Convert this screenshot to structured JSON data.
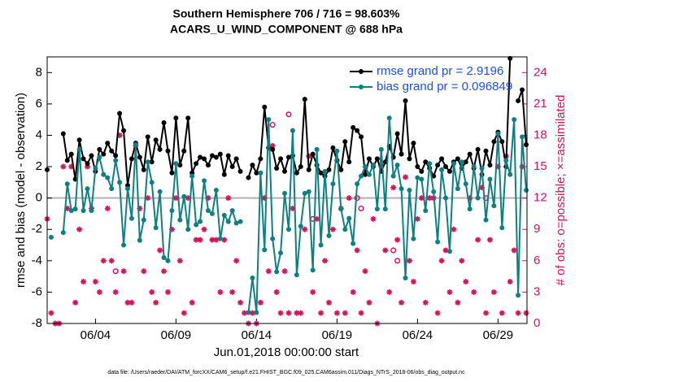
{
  "chart_data": {
    "type": "line",
    "title": "Southern Hemisphere 706 / 716 = 98.603%",
    "subtitle": "ACARS_U_WIND_COMPONENT @ 688 hPa",
    "xlabel": "Jun.01,2018 00:00:00 start",
    "ylabel": "rmse and bias (model - observation)",
    "y2label": "# of obs: o=possible; ×=assimilated",
    "footnote": "data file: /Users/raeder/DAI/ATM_forcXX/CAM6_setup/f.e21.FHIST_BGC.f09_025.CAM6assim.011/Diags_NTrS_2018-06/obs_diag_output.nc",
    "xlim": [
      0,
      29.8
    ],
    "xticks": [
      {
        "value": 3,
        "label": "06/04"
      },
      {
        "value": 8,
        "label": "06/09"
      },
      {
        "value": 13,
        "label": "06/14"
      },
      {
        "value": 18,
        "label": "06/19"
      },
      {
        "value": 23,
        "label": "06/24"
      },
      {
        "value": 28,
        "label": "06/29"
      }
    ],
    "ylim": [
      -8,
      9
    ],
    "yticks": [
      -8,
      -6,
      -4,
      -2,
      0,
      2,
      4,
      6,
      8
    ],
    "y2lim": [
      0,
      25.5
    ],
    "y2ticks": [
      0,
      3,
      6,
      9,
      12,
      15,
      18,
      21,
      24
    ],
    "legend": "upper right",
    "x": [
      0,
      0.25,
      0.5,
      0.75,
      1,
      1.25,
      1.5,
      1.75,
      2,
      2.25,
      2.5,
      2.75,
      3,
      3.25,
      3.5,
      3.75,
      4,
      4.25,
      4.5,
      4.75,
      5,
      5.25,
      5.5,
      5.75,
      6,
      6.25,
      6.5,
      6.75,
      7,
      7.25,
      7.5,
      7.75,
      8,
      8.25,
      8.5,
      8.75,
      9,
      9.25,
      9.5,
      9.75,
      10,
      10.25,
      10.5,
      10.75,
      11,
      11.25,
      11.5,
      11.75,
      12,
      12.25,
      12.5,
      12.75,
      13,
      13.25,
      13.5,
      13.75,
      14,
      14.25,
      14.5,
      14.75,
      15,
      15.25,
      15.5,
      15.75,
      16,
      16.25,
      16.5,
      16.75,
      17,
      17.25,
      17.5,
      17.75,
      18,
      18.25,
      18.5,
      18.75,
      19,
      19.25,
      19.5,
      19.75,
      20,
      20.25,
      20.5,
      20.75,
      21,
      21.25,
      21.5,
      21.75,
      22,
      22.25,
      22.5,
      22.75,
      23,
      23.25,
      23.5,
      23.75,
      24,
      24.25,
      24.5,
      24.75,
      25,
      25.25,
      25.5,
      25.75,
      26,
      26.25,
      26.5,
      26.75,
      27,
      27.25,
      27.5,
      27.75,
      28,
      28.25,
      28.5,
      28.75,
      29,
      29.25,
      29.5,
      29.75
    ],
    "series": [
      {
        "name": "rmse grand pr = 2.9196",
        "color": "#000000",
        "values": [
          1.8,
          null,
          null,
          null,
          4.1,
          2.4,
          2.8,
          1.2,
          3.7,
          2.5,
          2.2,
          2.7,
          1.7,
          3.1,
          2.8,
          3.5,
          3.0,
          2.7,
          5.4,
          4.3,
          0.8,
          2.5,
          3.5,
          2.6,
          1.8,
          3.9,
          2.3,
          3.7,
          3.1,
          4.8,
          3.0,
          1.6,
          5.1,
          2.1,
          3.0,
          5.1,
          1.6,
          2.2,
          2.6,
          2.5,
          2.1,
          2.7,
          2.6,
          2.8,
          1.5,
          2.7,
          2.0,
          2.5,
          1.7,
          null,
          1.3,
          2.1,
          1.6,
          2.5,
          5.8,
          3.2,
          3.1,
          1.9,
          2.5,
          1.7,
          2.6,
          2.7,
          1.6,
          2.0,
          6.3,
          1.8,
          2.8,
          2.1,
          1.6,
          1.4,
          1.8,
          3.2,
          2.4,
          1.8,
          3.6,
          2.3,
          4.5,
          4.3,
          3.9,
          1.5,
          2.5,
          2.0,
          2.5,
          1.7,
          2.3,
          3.3,
          2.6,
          4.1,
          2.8,
          6.2,
          2.5,
          3.5,
          2.0,
          1.7,
          2.3,
          1.9,
          1.4,
          2.1,
          2.5,
          2.0,
          1.7,
          2.3,
          2.5,
          1.9,
          2.3,
          2.8,
          1.9,
          3.1,
          1.5,
          3.0,
          2.1,
          3.6,
          4.2,
          3.6,
          2.0,
          8.9,
          null,
          6.2,
          6.9,
          3.4
        ]
      },
      {
        "name": "bias grand pr = 0.096849",
        "color": "#0e8080",
        "values": [
          null,
          -2.5,
          null,
          null,
          -2.2,
          0.9,
          -0.8,
          -0.7,
          3.1,
          -0.8,
          0.6,
          -0.8,
          1.9,
          2.6,
          1.5,
          1.3,
          0.6,
          2.4,
          1.0,
          -3.0,
          0.6,
          -1.3,
          3.4,
          -2.7,
          -1.4,
          2.3,
          1.0,
          -1.9,
          0.4,
          -3.8,
          -4.0,
          -0.8,
          2.2,
          -1.4,
          0.1,
          -2.0,
          1.4,
          -1.7,
          -1.5,
          1.1,
          -0.8,
          -1.0,
          0.5,
          -2.6,
          -1.1,
          -1.5,
          -0.8,
          -1.6,
          -1.5,
          null,
          -7.3,
          -5.1,
          -7.3,
          1.6,
          -3.3,
          5.0,
          -2.6,
          -4.7,
          -3.5,
          0.3,
          -2.0,
          4.3,
          -4.9,
          -1.8,
          0.3,
          0.4,
          -4.6,
          3.1,
          -3.0,
          1.7,
          -2.4,
          0.9,
          3.0,
          -0.7,
          -2.0,
          -1.3,
          -2.9,
          0.9,
          1.4,
          2.0,
          1.5,
          2.1,
          -0.7,
          3.1,
          -0.7,
          5.1,
          1.4,
          2.1,
          0.6,
          -5.1,
          0.5,
          -2.6,
          1.3,
          1.2,
          -0.8,
          2.2,
          0.4,
          -2.8,
          1.8,
          0.0,
          -3.4,
          2.2,
          0.6,
          2.3,
          0.9,
          -0.7,
          2.0,
          0.0,
          1.9,
          -1.4,
          1.2,
          -0.5,
          4.1,
          -1.9,
          2.4,
          1.5,
          5.0,
          -6.2,
          3.9,
          0.5
        ]
      },
      {
        "name": "assimilated",
        "color": "#d6135a",
        "axis": "y2",
        "marker": "asterisk",
        "values": [
          10,
          1,
          0,
          0,
          15,
          11,
          15,
          2,
          9,
          4,
          15,
          11,
          4,
          3,
          6,
          11,
          6,
          3,
          18,
          5,
          2,
          2,
          17,
          11,
          5,
          12,
          3,
          2,
          7,
          5,
          3,
          9,
          12,
          6,
          1,
          12,
          2,
          8,
          8,
          9,
          12,
          8,
          8,
          3,
          8,
          12,
          3,
          6,
          2,
          1,
          0,
          1,
          0,
          2,
          12,
          5,
          17,
          3,
          1,
          5,
          1,
          11,
          1,
          1,
          9,
          16,
          3,
          10,
          1,
          6,
          2,
          9,
          1,
          11,
          1,
          12,
          3,
          7,
          1,
          5,
          2,
          10,
          0,
          15,
          7,
          3,
          13,
          8,
          2,
          14,
          6,
          4,
          10,
          12,
          2,
          12,
          12,
          1,
          6,
          7,
          3,
          9,
          2,
          6,
          4,
          12,
          3,
          8,
          13,
          1,
          8,
          3,
          15,
          1,
          16,
          4,
          7,
          1,
          15,
          1
        ]
      },
      {
        "name": "possible",
        "color": "#d6135a",
        "axis": "y2",
        "marker": "circle",
        "values": [
          null,
          null,
          null,
          null,
          null,
          null,
          null,
          null,
          null,
          null,
          null,
          null,
          null,
          null,
          null,
          null,
          null,
          5,
          null,
          null,
          null,
          null,
          null,
          null,
          null,
          null,
          null,
          null,
          null,
          null,
          null,
          null,
          null,
          null,
          null,
          null,
          null,
          null,
          null,
          null,
          null,
          null,
          null,
          null,
          null,
          null,
          null,
          null,
          null,
          null,
          null,
          null,
          null,
          null,
          null,
          null,
          19,
          null,
          null,
          null,
          20,
          null,
          null,
          null,
          null,
          null,
          10,
          null,
          null,
          null,
          null,
          null,
          null,
          null,
          null,
          null,
          null,
          12,
          11,
          null,
          null,
          null,
          null,
          null,
          null,
          null,
          7,
          6,
          null,
          null,
          null,
          null,
          null,
          null,
          null,
          null,
          null,
          null,
          null,
          null,
          null,
          null,
          null,
          null,
          null,
          null,
          null,
          null,
          null,
          12,
          null,
          null,
          null,
          null,
          null,
          null,
          null,
          null,
          null,
          null
        ]
      }
    ]
  }
}
